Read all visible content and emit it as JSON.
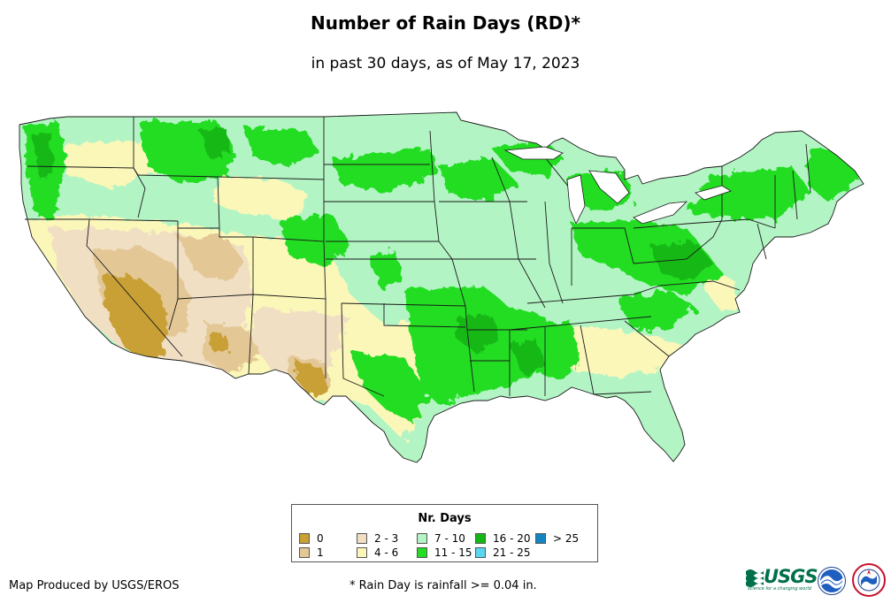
{
  "title": "Number of Rain Days (RD)*",
  "subtitle": "in past 30 days, as of May 17, 2023",
  "legend": {
    "title": "Nr. Days",
    "items": [
      {
        "label": "0",
        "color": "#c8a035"
      },
      {
        "label": "1",
        "color": "#e3c896"
      },
      {
        "label": "2 - 3",
        "color": "#f1dfc4"
      },
      {
        "label": "4 - 6",
        "color": "#fbf7b9"
      },
      {
        "label": "7 - 10",
        "color": "#b3f4c4"
      },
      {
        "label": "11 - 15",
        "color": "#22dd22"
      },
      {
        "label": "16 - 20",
        "color": "#14b814"
      },
      {
        "label": "21 - 25",
        "color": "#5bd6ef"
      },
      {
        "label": "> 25",
        "color": "#1385c2"
      }
    ]
  },
  "credit": "Map Produced by USGS/EROS",
  "footnote": "* Rain Day is rainfall >= 0.04 in.",
  "logos": {
    "usgs": {
      "word": "USGS",
      "tagline": "science for a changing world",
      "color": "#00704a"
    },
    "noaa": {
      "word": "noaa"
    },
    "nws": {
      "word": "NWS"
    }
  },
  "map": {
    "region": "Contiguous United States",
    "state_border_color": "#1a1a1a"
  }
}
